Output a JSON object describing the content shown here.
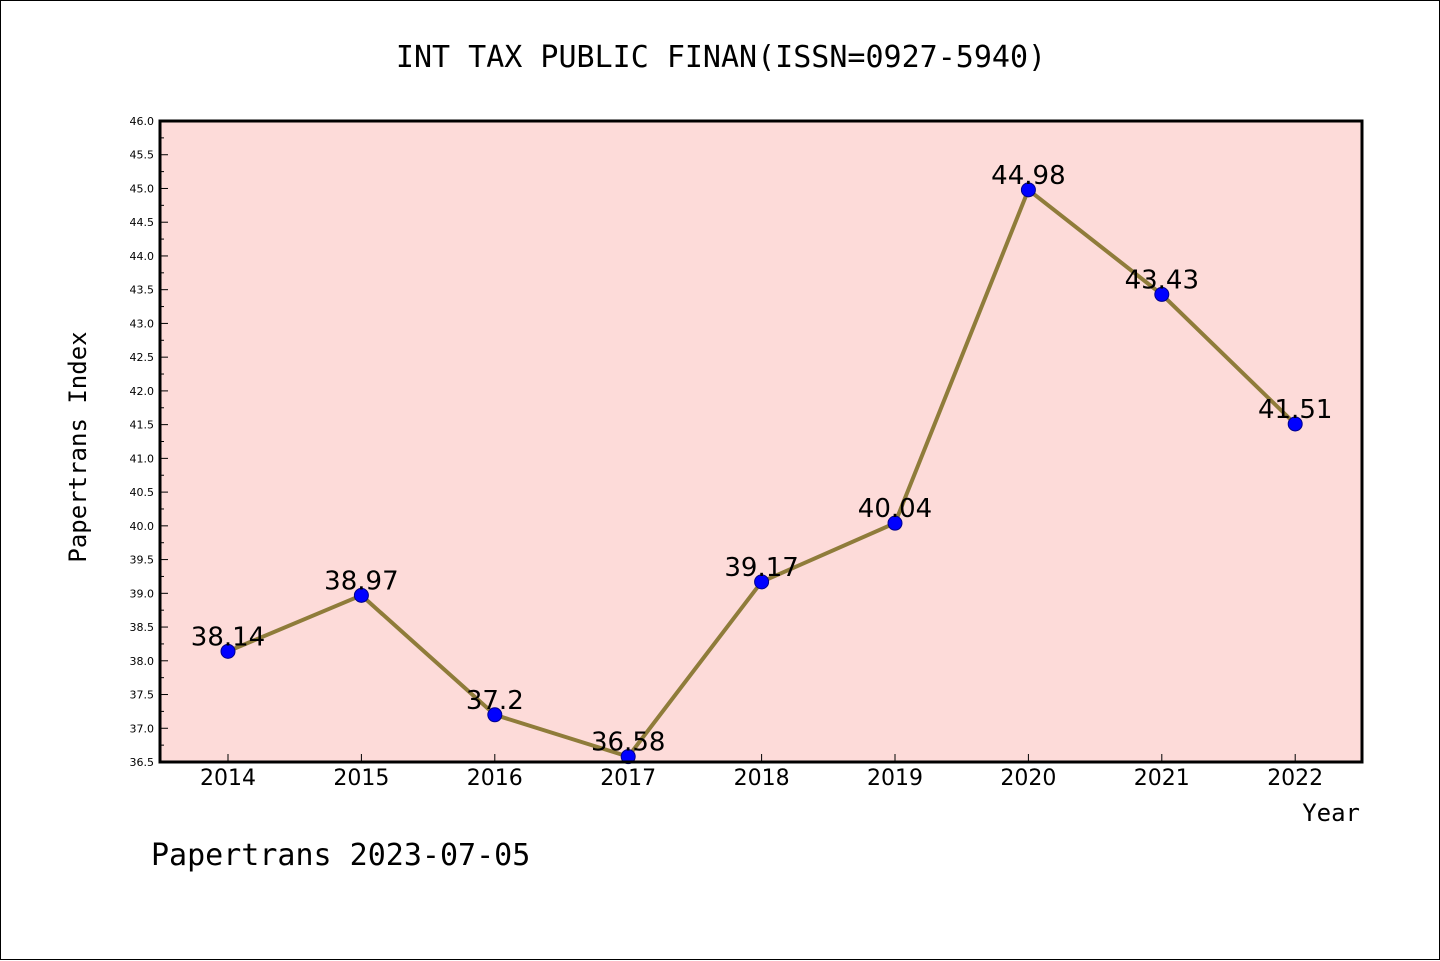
{
  "chart_data": {
    "type": "line",
    "title": "INT TAX PUBLIC FINAN(ISSN=0927-5940)",
    "xlabel": "Year",
    "ylabel": "Papertrans Index",
    "categories": [
      "2014",
      "2015",
      "2016",
      "2017",
      "2018",
      "2019",
      "2020",
      "2021",
      "2022"
    ],
    "values": [
      38.14,
      38.97,
      37.2,
      36.58,
      39.17,
      40.04,
      44.98,
      43.43,
      41.51
    ],
    "data_labels": [
      "38.14",
      "38.97",
      "37.2",
      "36.58",
      "39.17",
      "40.04",
      "44.98",
      "43.43",
      "41.51"
    ],
    "ylim": [
      36.5,
      46.0
    ],
    "yticks": [
      "36.5",
      "37.0",
      "37.5",
      "38.0",
      "38.5",
      "39.0",
      "39.5",
      "40.0",
      "40.5",
      "41.0",
      "41.5",
      "42.0",
      "42.5",
      "43.0",
      "43.5",
      "44.0",
      "44.5",
      "45.0",
      "45.5",
      "46.0"
    ],
    "grid": false,
    "colors": {
      "plot_background": "#fddbd9",
      "line": "#8f7c3a",
      "marker": "#0000ff"
    }
  },
  "footer": "Papertrans 2023-07-05"
}
